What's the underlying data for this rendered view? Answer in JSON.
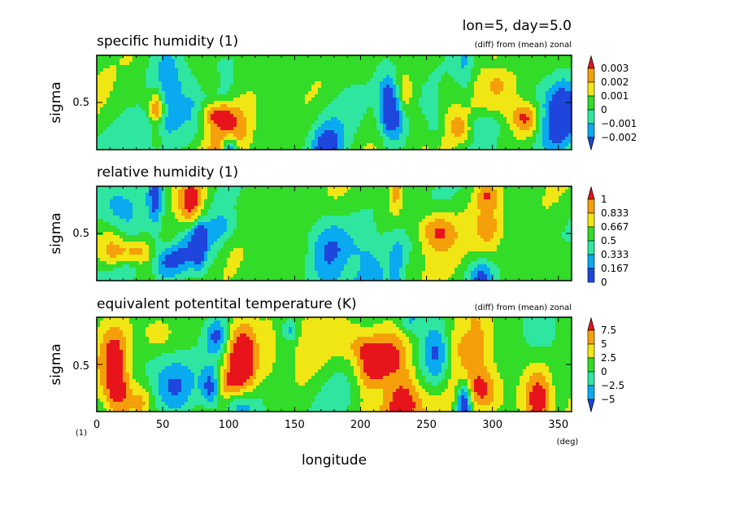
{
  "header": {
    "info": "lon=5, day=5.0"
  },
  "colors": {
    "red": "#e8141c",
    "orange": "#f5a00a",
    "yellow": "#f0e614",
    "green": "#32dc28",
    "teal": "#2ee6a0",
    "cyan": "#0aaaf0",
    "blue": "#1e46dc",
    "frame": "#000000"
  },
  "x_axis": {
    "label": "longitude",
    "unit": "(deg)",
    "ticks": [
      "0",
      "50",
      "100",
      "150",
      "200",
      "250",
      "300",
      "350"
    ]
  },
  "y_unit": "(1)",
  "chart_data": [
    {
      "type": "heatmap",
      "title": "specific humidity (1)",
      "note": "(diff) from (mean) zonal",
      "xlabel": "longitude",
      "ylabel": "sigma",
      "xlim": [
        0,
        360
      ],
      "ylim": [
        0.15,
        0.85
      ],
      "yticks": [
        "0.5"
      ],
      "colorbar": {
        "levels": [
          "0.003",
          "0.002",
          "0.001",
          "0",
          "−0.001",
          "−0.002"
        ],
        "extend": "both",
        "colors": [
          "#e8141c",
          "#f5a00a",
          "#f0e614",
          "#32dc28",
          "#2ee6a0",
          "#0aaaf0",
          "#1e46dc"
        ]
      },
      "seed": 11
    },
    {
      "type": "heatmap",
      "title": "relative humidity (1)",
      "note": "",
      "xlabel": "longitude",
      "ylabel": "sigma",
      "xlim": [
        0,
        360
      ],
      "ylim": [
        0.15,
        0.85
      ],
      "yticks": [
        "0.5"
      ],
      "colorbar": {
        "levels": [
          "1",
          "0.833",
          "0.667",
          "0.5",
          "0.333",
          "0.167",
          "0"
        ],
        "extend": "max",
        "colors": [
          "#e8141c",
          "#f5a00a",
          "#f0e614",
          "#32dc28",
          "#2ee6a0",
          "#0aaaf0",
          "#1e46dc"
        ]
      },
      "seed": 27
    },
    {
      "type": "heatmap",
      "title": "equivalent potentital temperature (K)",
      "note": "(diff) from (mean) zonal",
      "xlabel": "longitude",
      "ylabel": "sigma",
      "xlim": [
        0,
        360
      ],
      "ylim": [
        0.15,
        0.85
      ],
      "yticks": [
        "0.5"
      ],
      "colorbar": {
        "levels": [
          "7.5",
          "5",
          "2.5",
          "0",
          "−2.5",
          "−5"
        ],
        "extend": "both",
        "colors": [
          "#e8141c",
          "#f5a00a",
          "#f0e614",
          "#32dc28",
          "#2ee6a0",
          "#0aaaf0",
          "#1e46dc"
        ]
      },
      "seed": 43
    }
  ]
}
